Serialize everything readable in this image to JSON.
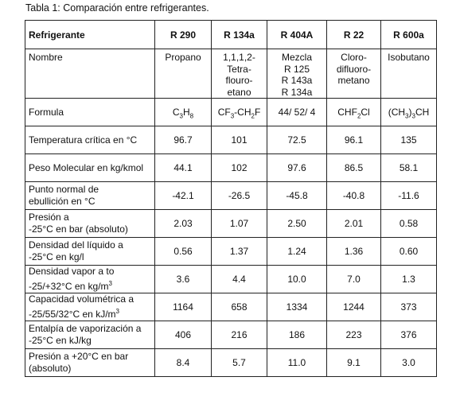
{
  "caption": "Tabla 1: Comparación entre refrigerantes.",
  "headers": [
    "Refrigerante",
    "R 290",
    "R 134a",
    "R 404A",
    "R 22",
    "R 600a"
  ],
  "nombre": {
    "label": "Nombre",
    "values": [
      [
        "Propano"
      ],
      [
        "1,1,1,2-",
        "Tetra-",
        "flouro-",
        "etano"
      ],
      [
        "Mezcla",
        "R 125",
        "R 143a",
        "R 134a"
      ],
      [
        "Cloro-",
        "difluoro-",
        "metano"
      ],
      [
        "Isobutano"
      ]
    ]
  },
  "formula": {
    "label": "Formula",
    "values": [
      {
        "a": "C",
        "s1": "3",
        "b": "H",
        "s2": "8",
        "c": ""
      },
      {
        "a": "CF",
        "s1": "3",
        "b": "-CH",
        "s2": "2",
        "c": "F"
      },
      {
        "a": "44/ 52/ 4",
        "s1": "",
        "b": "",
        "s2": "",
        "c": ""
      },
      {
        "a": "CHF",
        "s1": "2",
        "b": "Cl",
        "s2": "",
        "c": ""
      },
      {
        "a": "(CH",
        "s1": "3",
        "b": ")",
        "s2": "3",
        "c": "CH"
      }
    ]
  },
  "rows": [
    {
      "label": "Temperatura crítica en °C",
      "values": [
        "96.7",
        "101",
        "72.5",
        "96.1",
        "135"
      ]
    },
    {
      "label": "Peso Molecular en kg/kmol",
      "values": [
        "44.1",
        "102",
        "97.6",
        "86.5",
        "58.1"
      ]
    },
    {
      "label": "Punto normal de\nebullición en °C",
      "values": [
        "-42.1",
        "-26.5",
        "-45.8",
        "-40.8",
        "-11.6"
      ]
    },
    {
      "label": "Presión a\n-25°C en bar (absoluto)",
      "values": [
        "2.03",
        "1.07",
        "2.50",
        "2.01",
        "0.58"
      ]
    },
    {
      "label": "Densidad del líquido a\n-25°C en kg/l",
      "values": [
        "0.56",
        "1.37",
        "1.24",
        "1.36",
        "0.60"
      ]
    },
    {
      "label": "Densidad vapor a  to\n-25/+32°C en kg/m",
      "sup": "3",
      "values": [
        "3.6",
        "4.4",
        "10.0",
        "7.0",
        "1.3"
      ]
    },
    {
      "label": "Capacidad volumétrica a\n-25/55/32°C en kJ/m",
      "sup": "3",
      "values": [
        "1164",
        "658",
        "1334",
        "1244",
        "373"
      ]
    },
    {
      "label": "Entalpía de vaporización a\n-25°C en kJ/kg",
      "values": [
        "406",
        "216",
        "186",
        "223",
        "376"
      ]
    },
    {
      "label": "Presión a +20°C en bar\n(absoluto)",
      "values": [
        "8.4",
        "5.7",
        "11.0",
        "9.1",
        "3.0"
      ]
    }
  ]
}
